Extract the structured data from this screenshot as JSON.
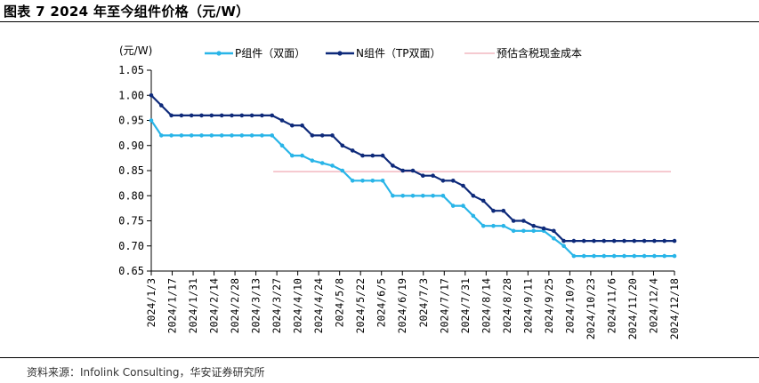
{
  "figure": {
    "title": "图表 7 2024 年至今组件价格（元/W）",
    "source": "资料来源：Infolink Consulting，华安证券研究所"
  },
  "colors": {
    "p_series": "#29b5e8",
    "n_series": "#0e2a7a",
    "cost_line": "#f2b8c0",
    "axis": "#000000"
  },
  "chart_data": {
    "type": "line",
    "unit_label": "(元/W)",
    "ylim": [
      0.65,
      1.05
    ],
    "y_ticks": [
      "1.05",
      "1.00",
      "0.95",
      "0.90",
      "0.85",
      "0.80",
      "0.75",
      "0.70",
      "0.65"
    ],
    "x_tick_labels": [
      "2024/1/3",
      "2024/1/17",
      "2024/1/31",
      "2024/2/14",
      "2024/2/28",
      "2024/3/13",
      "2024/3/27",
      "2024/4/10",
      "2024/4/24",
      "2024/5/8",
      "2024/5/22",
      "2024/6/5",
      "2024/6/19",
      "2024/7/3",
      "2024/7/17",
      "2024/7/31",
      "2024/8/14",
      "2024/8/28",
      "2024/9/11",
      "2024/9/25",
      "2024/10/9",
      "2024/10/23",
      "2024/11/6",
      "2024/11/20",
      "2024/12/4",
      "2024/12/18"
    ],
    "grid": false,
    "legend_position": "top",
    "series": [
      {
        "name": "P组件（双面）",
        "values": [
          0.95,
          0.92,
          0.92,
          0.92,
          0.92,
          0.92,
          0.92,
          0.92,
          0.92,
          0.92,
          0.92,
          0.92,
          0.92,
          0.9,
          0.88,
          0.88,
          0.87,
          0.865,
          0.86,
          0.85,
          0.83,
          0.83,
          0.83,
          0.83,
          0.8,
          0.8,
          0.8,
          0.8,
          0.8,
          0.8,
          0.78,
          0.78,
          0.76,
          0.74,
          0.74,
          0.74,
          0.73,
          0.73,
          0.73,
          0.73,
          0.715,
          0.7,
          0.68,
          0.68,
          0.68,
          0.68,
          0.68,
          0.68,
          0.68,
          0.68,
          0.68,
          0.68,
          0.68
        ]
      },
      {
        "name": "N组件（TP双面）",
        "values": [
          1.0,
          0.98,
          0.96,
          0.96,
          0.96,
          0.96,
          0.96,
          0.96,
          0.96,
          0.96,
          0.96,
          0.96,
          0.96,
          0.95,
          0.94,
          0.94,
          0.92,
          0.92,
          0.92,
          0.9,
          0.89,
          0.88,
          0.88,
          0.88,
          0.86,
          0.85,
          0.85,
          0.84,
          0.84,
          0.83,
          0.83,
          0.82,
          0.8,
          0.79,
          0.77,
          0.77,
          0.75,
          0.75,
          0.74,
          0.735,
          0.73,
          0.71,
          0.71,
          0.71,
          0.71,
          0.71,
          0.71,
          0.71,
          0.71,
          0.71,
          0.71,
          0.71,
          0.71
        ]
      },
      {
        "name": "预估含税现金成本",
        "value": 0.848,
        "start_x": "2024/3/27",
        "end_x": "2024/12/18"
      }
    ]
  }
}
